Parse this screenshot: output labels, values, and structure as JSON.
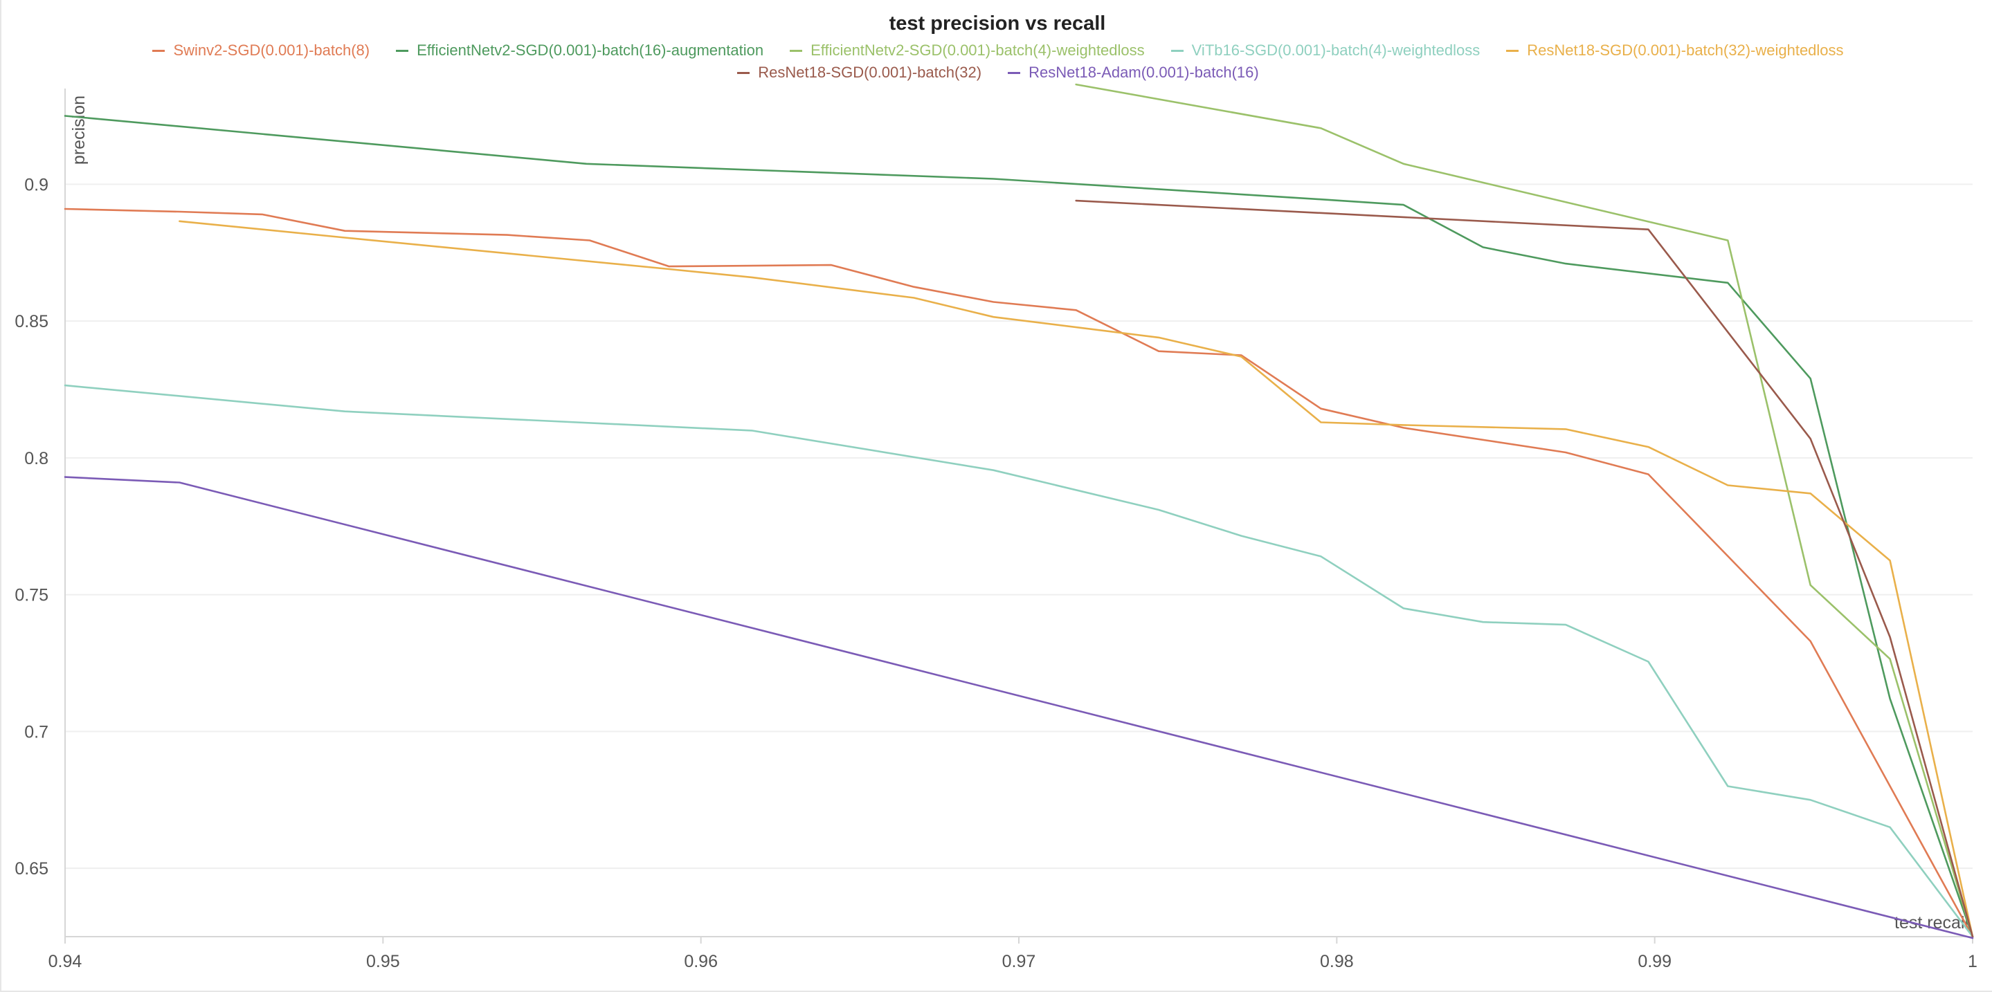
{
  "chart_data": {
    "type": "line",
    "title": "test precision vs recall",
    "xlabel": "test recall",
    "ylabel": "precision",
    "xlim": [
      0.94,
      1.0
    ],
    "ylim": [
      0.625,
      0.935
    ],
    "xticks": [
      "0.94",
      "0.95",
      "0.96",
      "0.97",
      "0.98",
      "0.99",
      "1"
    ],
    "yticks": [
      "0.65",
      "0.7",
      "0.75",
      "0.8",
      "0.85",
      "0.9"
    ],
    "grid": true,
    "legend_position": "top",
    "series": [
      {
        "name": "Swinv2-SGD(0.001)-batch(8)",
        "color": "#e07b54",
        "points": [
          [
            0.94,
            0.891
          ],
          [
            0.9436,
            0.89
          ],
          [
            0.9462,
            0.889
          ],
          [
            0.9488,
            0.883
          ],
          [
            0.9539,
            0.8815
          ],
          [
            0.9565,
            0.8795
          ],
          [
            0.959,
            0.87
          ],
          [
            0.9641,
            0.8705
          ],
          [
            0.9667,
            0.8625
          ],
          [
            0.9692,
            0.857
          ],
          [
            0.9718,
            0.854
          ],
          [
            0.9744,
            0.839
          ],
          [
            0.977,
            0.8375
          ],
          [
            0.9795,
            0.818
          ],
          [
            0.9821,
            0.811
          ],
          [
            0.9872,
            0.802
          ],
          [
            0.9898,
            0.794
          ],
          [
            0.9949,
            0.733
          ],
          [
            1.0,
            0.625
          ]
        ]
      },
      {
        "name": "EfficientNetv2-SGD(0.001)-batch(16)-augmentation",
        "color": "#4e9a5e",
        "points": [
          [
            0.94,
            0.925
          ],
          [
            0.9564,
            0.9075
          ],
          [
            0.9692,
            0.902
          ],
          [
            0.9795,
            0.8945
          ],
          [
            0.9821,
            0.8925
          ],
          [
            0.9846,
            0.877
          ],
          [
            0.9872,
            0.871
          ],
          [
            0.9923,
            0.864
          ],
          [
            0.9949,
            0.829
          ],
          [
            0.9974,
            0.712
          ],
          [
            1.0,
            0.625
          ]
        ]
      },
      {
        "name": "EfficientNetv2-SGD(0.001)-batch(4)-weightedloss",
        "color": "#9bc16a",
        "points": [
          [
            0.9718,
            0.9365
          ],
          [
            0.9795,
            0.9205
          ],
          [
            0.9821,
            0.9075
          ],
          [
            0.9923,
            0.8795
          ],
          [
            0.9949,
            0.7535
          ],
          [
            0.9974,
            0.7265
          ],
          [
            1.0,
            0.625
          ]
        ]
      },
      {
        "name": "ViTb16-SGD(0.001)-batch(4)-weightedloss",
        "color": "#8fd0bf",
        "points": [
          [
            0.94,
            0.8265
          ],
          [
            0.9488,
            0.817
          ],
          [
            0.9616,
            0.81
          ],
          [
            0.9692,
            0.7955
          ],
          [
            0.9744,
            0.781
          ],
          [
            0.977,
            0.7715
          ],
          [
            0.9795,
            0.764
          ],
          [
            0.9821,
            0.745
          ],
          [
            0.9846,
            0.74
          ],
          [
            0.9872,
            0.739
          ],
          [
            0.9898,
            0.7255
          ],
          [
            0.9923,
            0.68
          ],
          [
            0.9949,
            0.675
          ],
          [
            0.9974,
            0.665
          ],
          [
            1.0,
            0.625
          ]
        ]
      },
      {
        "name": "ResNet18-SGD(0.001)-batch(32)-weightedloss",
        "color": "#e9b04a",
        "points": [
          [
            0.9436,
            0.8865
          ],
          [
            0.9488,
            0.8805
          ],
          [
            0.959,
            0.869
          ],
          [
            0.9616,
            0.866
          ],
          [
            0.9667,
            0.8585
          ],
          [
            0.9692,
            0.8515
          ],
          [
            0.9744,
            0.844
          ],
          [
            0.977,
            0.837
          ],
          [
            0.9795,
            0.813
          ],
          [
            0.9821,
            0.812
          ],
          [
            0.9872,
            0.8105
          ],
          [
            0.9898,
            0.804
          ],
          [
            0.9923,
            0.79
          ],
          [
            0.9949,
            0.787
          ],
          [
            0.9974,
            0.7625
          ],
          [
            1.0,
            0.625
          ]
        ]
      },
      {
        "name": "ResNet18-SGD(0.001)-batch(32)",
        "color": "#9a5a4c",
        "points": [
          [
            0.9718,
            0.894
          ],
          [
            0.9898,
            0.8835
          ],
          [
            0.9949,
            0.807
          ],
          [
            0.9974,
            0.7345
          ],
          [
            1.0,
            0.625
          ]
        ]
      },
      {
        "name": "ResNet18-Adam(0.001)-batch(16)",
        "color": "#7b5bb6",
        "points": [
          [
            0.94,
            0.793
          ],
          [
            0.9436,
            0.791
          ],
          [
            1.0,
            0.6245
          ]
        ]
      }
    ]
  }
}
